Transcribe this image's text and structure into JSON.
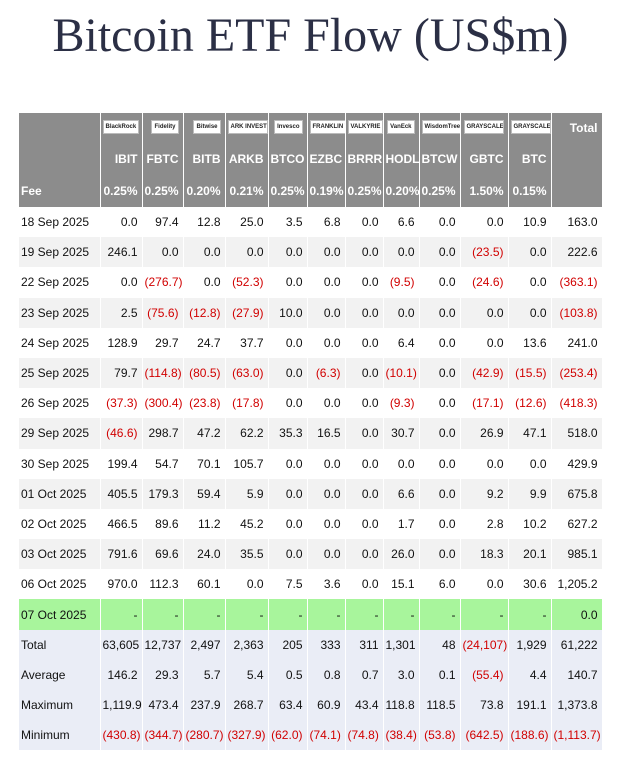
{
  "title": "Bitcoin ETF Flow (US$m)",
  "table": {
    "logos": [
      "BlackRock",
      "Fidelity",
      "Bitwise",
      "ARK INVEST",
      "Invesco",
      "FRANKLIN TEMPLETON",
      "VALKYRIE",
      "VanEck",
      "WisdomTree",
      "GRAYSCALE",
      "GRAYSCALE"
    ],
    "total_header": "Total",
    "columns": [
      "IBIT",
      "FBTC",
      "BITB",
      "ARKB",
      "BTCO",
      "EZBC",
      "BRRR",
      "HODL",
      "BTCW",
      "GBTC",
      "BTC"
    ],
    "fee": {
      "label": "Fee",
      "values": [
        "0.25%",
        "0.25%",
        "0.20%",
        "0.21%",
        "0.25%",
        "0.19%",
        "0.25%",
        "0.20%",
        "0.25%",
        "1.50%",
        "0.15%"
      ]
    },
    "rows": [
      {
        "label": "18 Sep 2025",
        "values": [
          "0.0",
          "97.4",
          "12.8",
          "25.0",
          "3.5",
          "6.8",
          "0.0",
          "6.6",
          "0.0",
          "0.0",
          "10.9",
          "163.0"
        ]
      },
      {
        "label": "19 Sep 2025",
        "values": [
          "246.1",
          "0.0",
          "0.0",
          "0.0",
          "0.0",
          "0.0",
          "0.0",
          "0.0",
          "0.0",
          "(23.5)",
          "0.0",
          "222.6"
        ]
      },
      {
        "label": "22 Sep 2025",
        "values": [
          "0.0",
          "(276.7)",
          "0.0",
          "(52.3)",
          "0.0",
          "0.0",
          "0.0",
          "(9.5)",
          "0.0",
          "(24.6)",
          "0.0",
          "(363.1)"
        ]
      },
      {
        "label": "23 Sep 2025",
        "values": [
          "2.5",
          "(75.6)",
          "(12.8)",
          "(27.9)",
          "10.0",
          "0.0",
          "0.0",
          "0.0",
          "0.0",
          "0.0",
          "0.0",
          "(103.8)"
        ]
      },
      {
        "label": "24 Sep 2025",
        "values": [
          "128.9",
          "29.7",
          "24.7",
          "37.7",
          "0.0",
          "0.0",
          "0.0",
          "6.4",
          "0.0",
          "0.0",
          "13.6",
          "241.0"
        ]
      },
      {
        "label": "25 Sep 2025",
        "values": [
          "79.7",
          "(114.8)",
          "(80.5)",
          "(63.0)",
          "0.0",
          "(6.3)",
          "0.0",
          "(10.1)",
          "0.0",
          "(42.9)",
          "(15.5)",
          "(253.4)"
        ]
      },
      {
        "label": "26 Sep 2025",
        "values": [
          "(37.3)",
          "(300.4)",
          "(23.8)",
          "(17.8)",
          "0.0",
          "0.0",
          "0.0",
          "(9.3)",
          "0.0",
          "(17.1)",
          "(12.6)",
          "(418.3)"
        ]
      },
      {
        "label": "29 Sep 2025",
        "values": [
          "(46.6)",
          "298.7",
          "47.2",
          "62.2",
          "35.3",
          "16.5",
          "0.0",
          "30.7",
          "0.0",
          "26.9",
          "47.1",
          "518.0"
        ]
      },
      {
        "label": "30 Sep 2025",
        "values": [
          "199.4",
          "54.7",
          "70.1",
          "105.7",
          "0.0",
          "0.0",
          "0.0",
          "0.0",
          "0.0",
          "0.0",
          "0.0",
          "429.9"
        ]
      },
      {
        "label": "01 Oct 2025",
        "values": [
          "405.5",
          "179.3",
          "59.4",
          "5.9",
          "0.0",
          "0.0",
          "0.0",
          "6.6",
          "0.0",
          "9.2",
          "9.9",
          "675.8"
        ]
      },
      {
        "label": "02 Oct 2025",
        "values": [
          "466.5",
          "89.6",
          "11.2",
          "45.2",
          "0.0",
          "0.0",
          "0.0",
          "1.7",
          "0.0",
          "2.8",
          "10.2",
          "627.2"
        ]
      },
      {
        "label": "03 Oct 2025",
        "values": [
          "791.6",
          "69.6",
          "24.0",
          "35.5",
          "0.0",
          "0.0",
          "0.0",
          "26.0",
          "0.0",
          "18.3",
          "20.1",
          "985.1"
        ]
      },
      {
        "label": "06 Oct 2025",
        "values": [
          "970.0",
          "112.3",
          "60.1",
          "0.0",
          "7.5",
          "3.6",
          "0.0",
          "15.1",
          "6.0",
          "0.0",
          "30.6",
          "1,205.2"
        ]
      }
    ],
    "pending_row": {
      "label": "07 Oct 2025",
      "values": [
        "-",
        "-",
        "-",
        "-",
        "-",
        "-",
        "-",
        "-",
        "-",
        "-",
        "-",
        "0.0"
      ]
    },
    "summary": [
      {
        "label": "Total",
        "values": [
          "63,605",
          "12,737",
          "2,497",
          "2,363",
          "205",
          "333",
          "311",
          "1,301",
          "48",
          "(24,107)",
          "1,929",
          "61,222"
        ]
      },
      {
        "label": "Average",
        "values": [
          "146.2",
          "29.3",
          "5.7",
          "5.4",
          "0.5",
          "0.8",
          "0.7",
          "3.0",
          "0.1",
          "(55.4)",
          "4.4",
          "140.7"
        ]
      },
      {
        "label": "Maximum",
        "values": [
          "1,119.9",
          "473.4",
          "237.9",
          "268.7",
          "63.4",
          "60.9",
          "43.4",
          "118.8",
          "118.5",
          "73.8",
          "191.1",
          "1,373.8"
        ]
      },
      {
        "label": "Minimum",
        "values": [
          "(430.8)",
          "(344.7)",
          "(280.7)",
          "(327.9)",
          "(62.0)",
          "(74.1)",
          "(74.8)",
          "(38.4)",
          "(53.8)",
          "(642.5)",
          "(188.6)",
          "(1,113.7)"
        ]
      }
    ]
  }
}
